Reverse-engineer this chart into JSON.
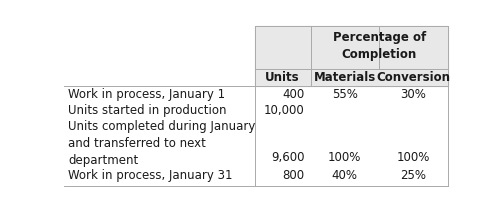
{
  "header_group_text": "Percentage of\nCompletion",
  "subheaders": [
    "Units",
    "Materials",
    "Conversion"
  ],
  "rows": [
    {
      "label": "Work in process, January 1",
      "units": "400",
      "materials": "55%",
      "conversion": "30%"
    },
    {
      "label": "Units started in production",
      "units": "10,000",
      "materials": "",
      "conversion": ""
    },
    {
      "label": "Units completed during January\nand transferred to next\ndepartment",
      "units": "9,600",
      "materials": "100%",
      "conversion": "100%"
    },
    {
      "label": "Work in process, January 31",
      "units": "800",
      "materials": "40%",
      "conversion": "25%"
    }
  ],
  "bg_gray": "#e8e8e8",
  "bg_white": "#ffffff",
  "border_color": "#aaaaaa",
  "text_color": "#1a1a1a",
  "font_size": 8.5,
  "bold_font_size": 8.5,
  "fig_width": 5.0,
  "fig_height": 2.12,
  "dpi": 100
}
